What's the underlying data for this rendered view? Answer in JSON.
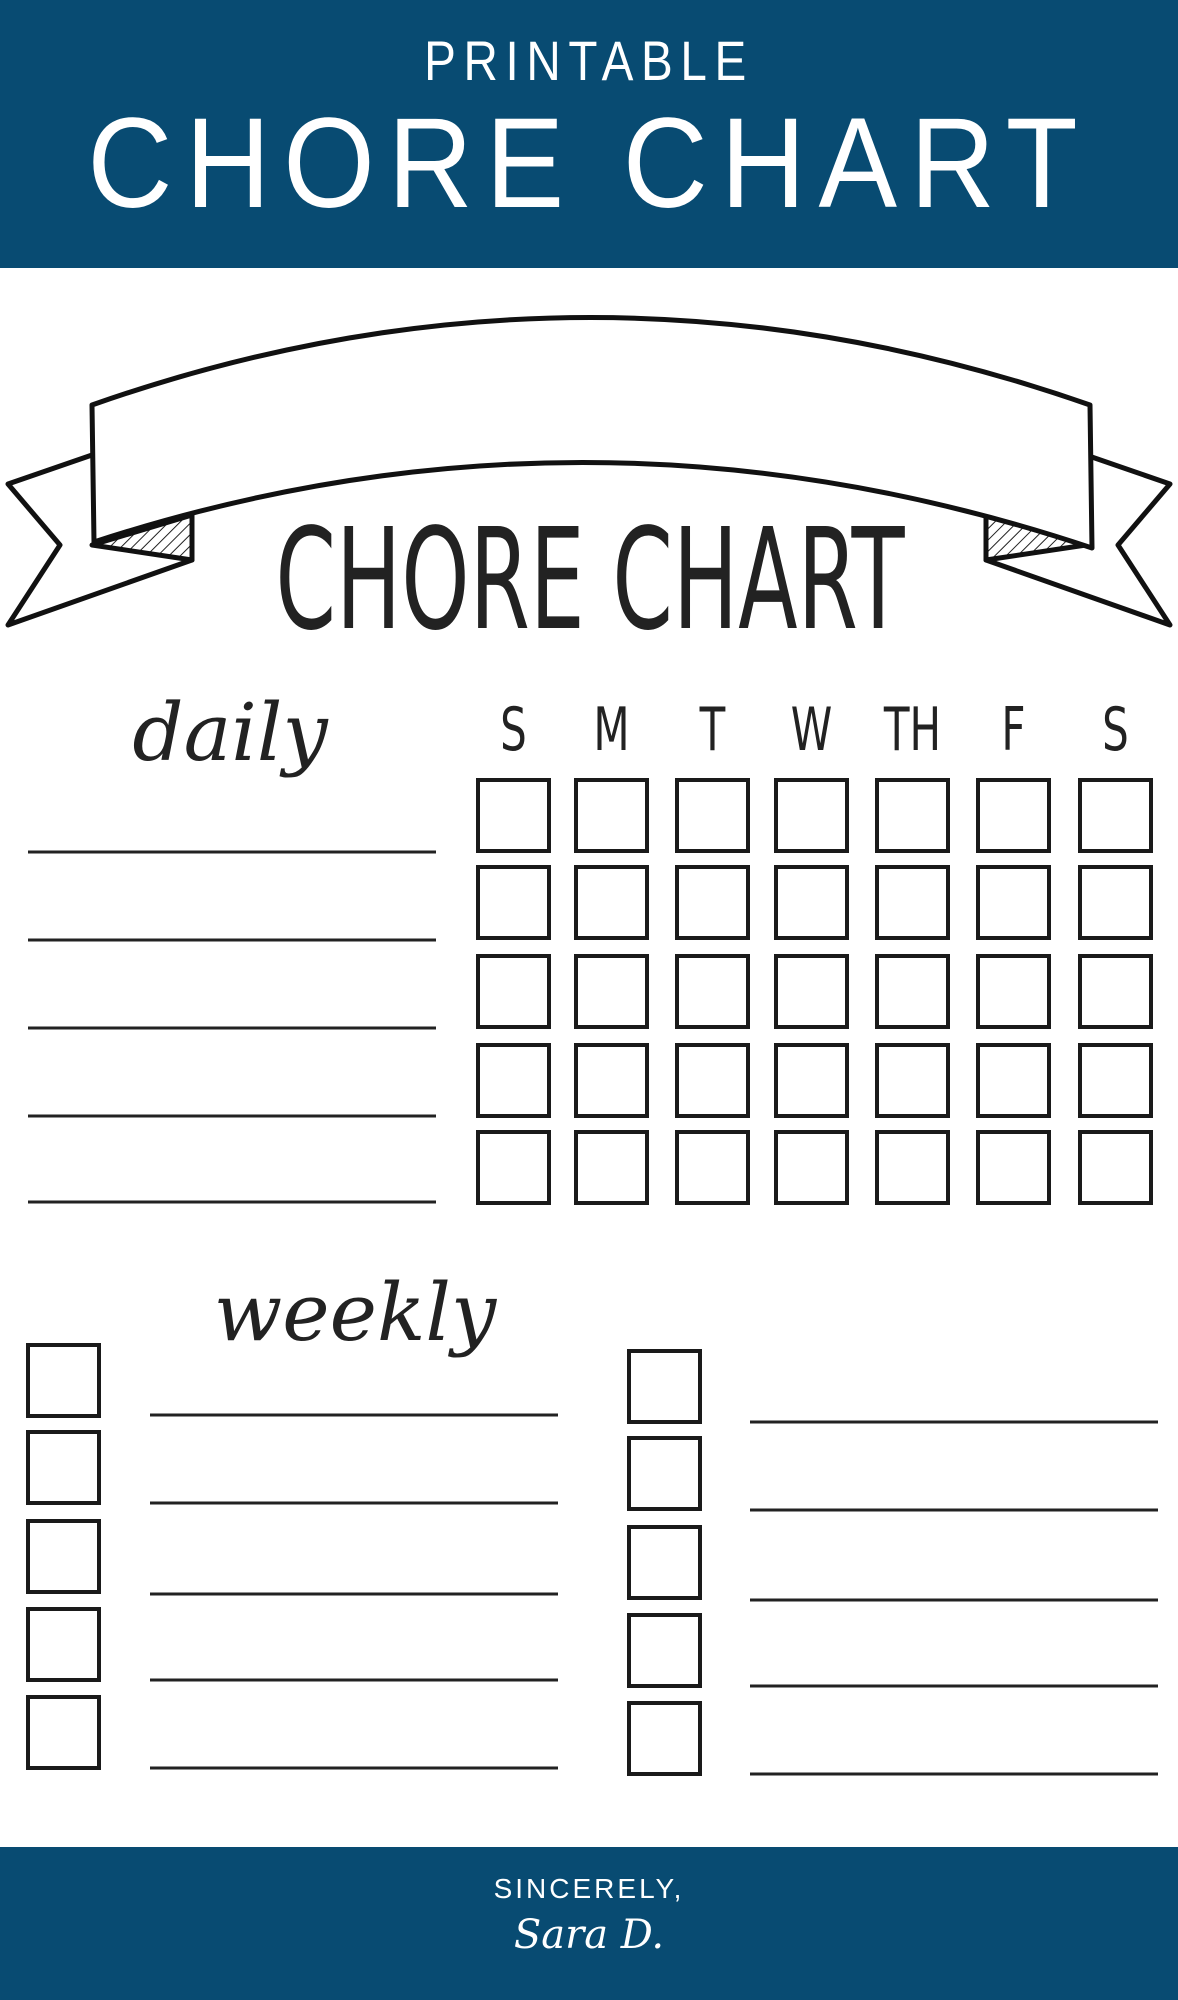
{
  "header": {
    "kicker": "PRINTABLE",
    "title": "CHORE CHART",
    "color": "#084b72"
  },
  "ribbon_title": "CHORE CHART",
  "daily": {
    "label": "daily",
    "days": [
      "S",
      "M",
      "T",
      "W",
      "TH",
      "F",
      "S"
    ],
    "rows": 5
  },
  "weekly": {
    "label": "weekly",
    "rows_per_column": 5,
    "columns": 2
  },
  "footer": {
    "line1": "SINCERELY,",
    "line2": "Sara D."
  }
}
